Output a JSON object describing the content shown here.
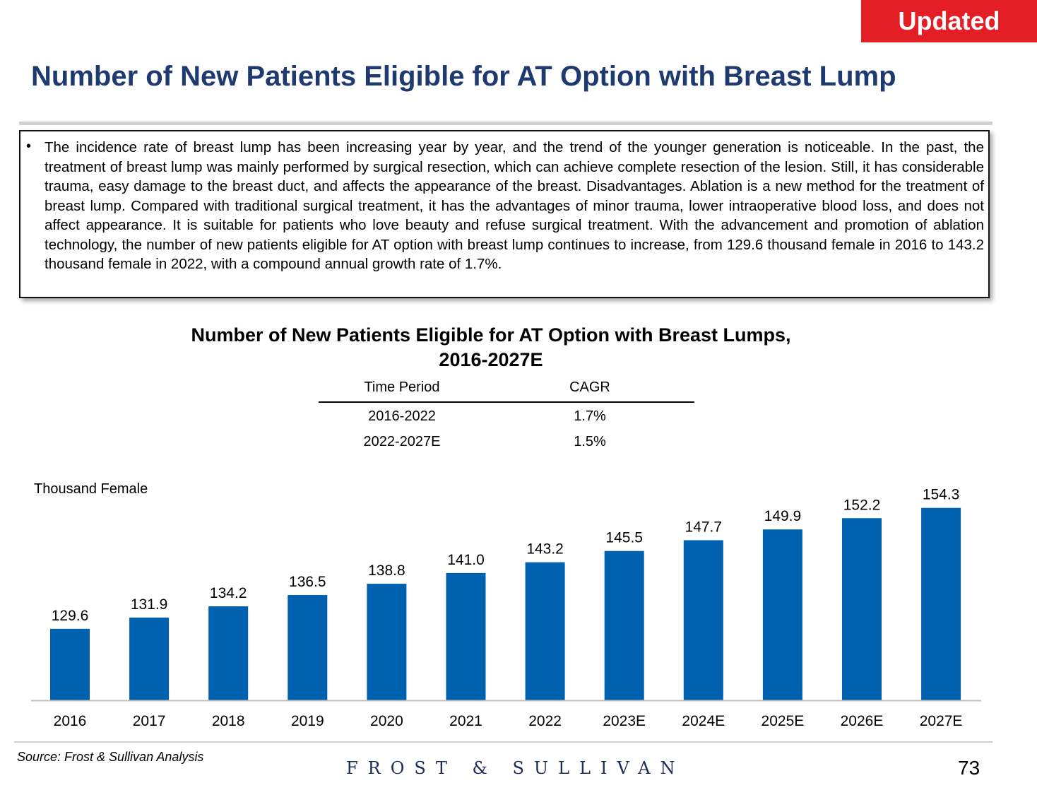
{
  "badge": "Updated",
  "title": "Number of New Patients Eligible for AT Option with Breast Lump",
  "bullet_symbol": "•",
  "summary": "The incidence rate of breast lump has been increasing year by year, and the trend of the younger generation is noticeable. In the past, the treatment of breast lump was mainly performed by surgical resection, which can achieve complete resection of the lesion. Still, it has considerable trauma, easy damage to the breast duct, and affects the appearance of the breast. Disadvantages. Ablation is a new method for the treatment of breast lump. Compared with traditional surgical treatment, it has the advantages of minor trauma, lower intraoperative blood loss, and does not affect appearance. It is suitable for patients who love beauty and refuse surgical treatment. With the advancement and promotion of ablation technology, the number of new patients eligible for AT option with breast lump continues to increase, from 129.6 thousand female in 2016 to 143.2 thousand female in 2022, with a compound annual growth rate of 1.7%.",
  "cagr_table": {
    "header": [
      "Time Period",
      "CAGR"
    ],
    "rows": [
      [
        "2016-2022",
        "1.7%"
      ],
      [
        "2022-2027E",
        "1.5%"
      ]
    ]
  },
  "chart_data": {
    "type": "bar",
    "title_line1": "Number of New Patients Eligible for AT Option with Breast Lumps,",
    "title_line2": "2016-2027E",
    "ylabel": "Thousand Female",
    "categories": [
      "2016",
      "2017",
      "2018",
      "2019",
      "2020",
      "2021",
      "2022",
      "2023E",
      "2024E",
      "2025E",
      "2026E",
      "2027E"
    ],
    "values": [
      129.6,
      131.9,
      134.2,
      136.5,
      138.8,
      141.0,
      143.2,
      145.5,
      147.7,
      149.9,
      152.2,
      154.3
    ],
    "value_labels": [
      "129.6",
      "131.9",
      "134.2",
      "136.5",
      "138.8",
      "141.0",
      "143.2",
      "145.5",
      "147.7",
      "149.9",
      "152.2",
      "154.3"
    ],
    "ylim": [
      115,
      157
    ],
    "bar_color": "#0061b0"
  },
  "source": "Source: Frost & Sullivan Analysis",
  "logo": "FROST & SULLIVAN",
  "page_number": "73"
}
